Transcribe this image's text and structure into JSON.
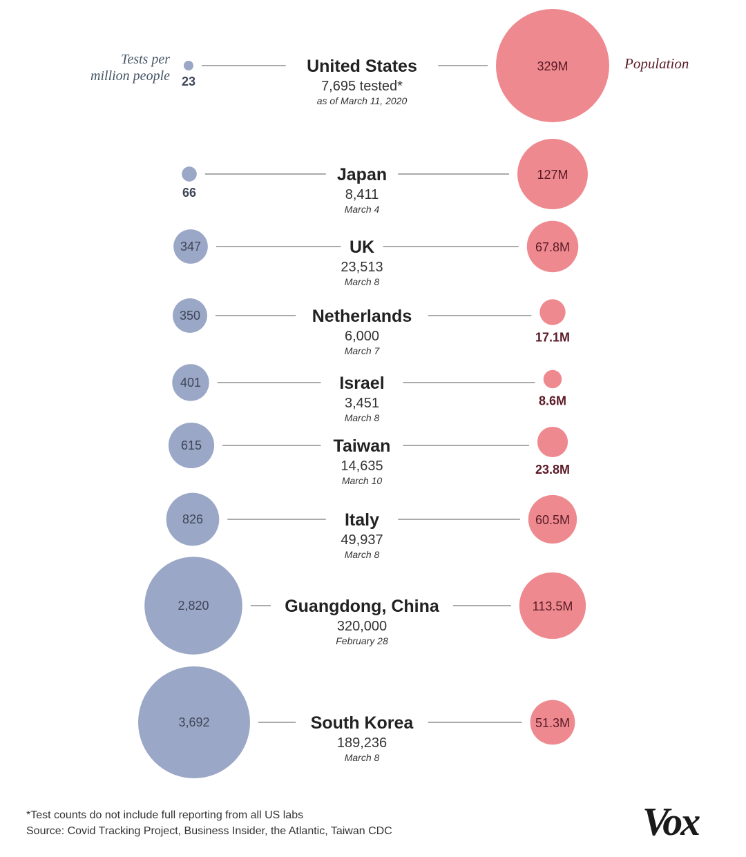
{
  "chart_data": {
    "type": "bubble-comparison",
    "legend": {
      "left_line1": "Tests per",
      "left_line2": "million people",
      "right": "Population"
    },
    "colors": {
      "tests": "#9aa7c6",
      "population": "#ee8a8f",
      "line": "#777777"
    },
    "rows": [
      {
        "country": "United States",
        "tested": "7,695 tested*",
        "date": "as of March 11, 2020",
        "tests_per_million": 23,
        "tests_label": "23",
        "population_m": 329,
        "pop_label": "329M"
      },
      {
        "country": "Japan",
        "tested": "8,411",
        "date": "March 4",
        "tests_per_million": 66,
        "tests_label": "66",
        "population_m": 127,
        "pop_label": "127M"
      },
      {
        "country": "UK",
        "tested": "23,513",
        "date": "March 8",
        "tests_per_million": 347,
        "tests_label": "347",
        "population_m": 67.8,
        "pop_label": "67.8M"
      },
      {
        "country": "Netherlands",
        "tested": "6,000",
        "date": "March 7",
        "tests_per_million": 350,
        "tests_label": "350",
        "population_m": 17.1,
        "pop_label": "17.1M"
      },
      {
        "country": "Israel",
        "tested": "3,451",
        "date": "March 8",
        "tests_per_million": 401,
        "tests_label": "401",
        "population_m": 8.6,
        "pop_label": "8.6M"
      },
      {
        "country": "Taiwan",
        "tested": "14,635",
        "date": "March 10",
        "tests_per_million": 615,
        "tests_label": "615",
        "population_m": 23.8,
        "pop_label": "23.8M"
      },
      {
        "country": "Italy",
        "tested": "49,937",
        "date": "March 8",
        "tests_per_million": 826,
        "tests_label": "826",
        "population_m": 60.5,
        "pop_label": "60.5M"
      },
      {
        "country": "Guangdong, China",
        "tested": "320,000",
        "date": "February 28",
        "tests_per_million": 2820,
        "tests_label": "2,820",
        "population_m": 113.5,
        "pop_label": "113.5M"
      },
      {
        "country": "South Korea",
        "tested": "189,236",
        "date": "March 8",
        "tests_per_million": 3692,
        "tests_label": "3,692",
        "population_m": 51.3,
        "pop_label": "51.3M"
      }
    ]
  },
  "footer": {
    "note": "*Test counts do not include full reporting from all US labs",
    "source": "Source: Covid Tracking Project, Business Insider, the Atlantic, Taiwan CDC",
    "logo": "Vox"
  }
}
